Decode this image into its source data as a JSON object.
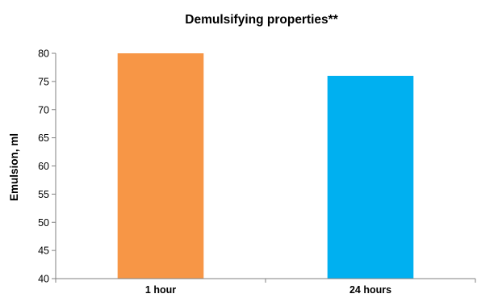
{
  "chart_data": {
    "type": "bar",
    "title": "Demulsifying properties**",
    "xlabel": "",
    "ylabel": "Emulsion, ml",
    "categories": [
      "1 hour",
      "24 hours"
    ],
    "values": [
      80,
      76
    ],
    "colors": [
      "#F79646",
      "#00B0F0"
    ],
    "ylim": [
      40,
      80
    ],
    "yticks": [
      40,
      45,
      50,
      55,
      60,
      65,
      70,
      75,
      80
    ],
    "grid": false,
    "legend": "none"
  }
}
